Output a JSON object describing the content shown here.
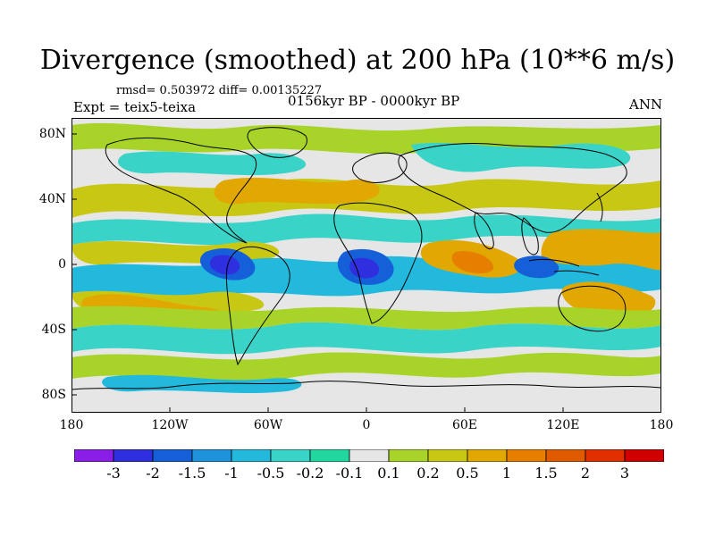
{
  "title": "Divergence (smoothed) at 200 hPa (10**6 m/s)",
  "stats": "rmsd= 0.503972  diff= 0.00135227",
  "expt": "Expt = teix5-teixa",
  "period": "0156kyr BP - 0000kyr BP",
  "season": "ANN",
  "lat_labels": [
    "80N",
    "40N",
    "0",
    "40S",
    "80S"
  ],
  "lon_labels": [
    "180",
    "120W",
    "60W",
    "0",
    "60E",
    "120E",
    "180"
  ],
  "colorbar": {
    "labels": [
      "-3",
      "-2",
      "-1.5",
      "-1",
      "-0.5",
      "-0.2",
      "-0.1",
      "0.1",
      "0.2",
      "0.5",
      "1",
      "1.5",
      "2",
      "3"
    ],
    "colors": [
      "#8a1ee6",
      "#2f2fe0",
      "#1560d8",
      "#1e93dc",
      "#22b9dc",
      "#3ad3c7",
      "#22d6a0",
      "#e6e6e6",
      "#a8d42a",
      "#c8c814",
      "#e0a800",
      "#e67e00",
      "#e05a00",
      "#e03000",
      "#d00000"
    ]
  },
  "map_colors": {
    "neutral": "#e6e6e6",
    "neg1": "#3ad3c7",
    "neg2": "#22b9dc",
    "neg3": "#1560d8",
    "neg4": "#2f2fe0",
    "pos1": "#a8d42a",
    "pos2": "#c8c814",
    "pos3": "#e0a800",
    "pos4": "#e67e00"
  }
}
